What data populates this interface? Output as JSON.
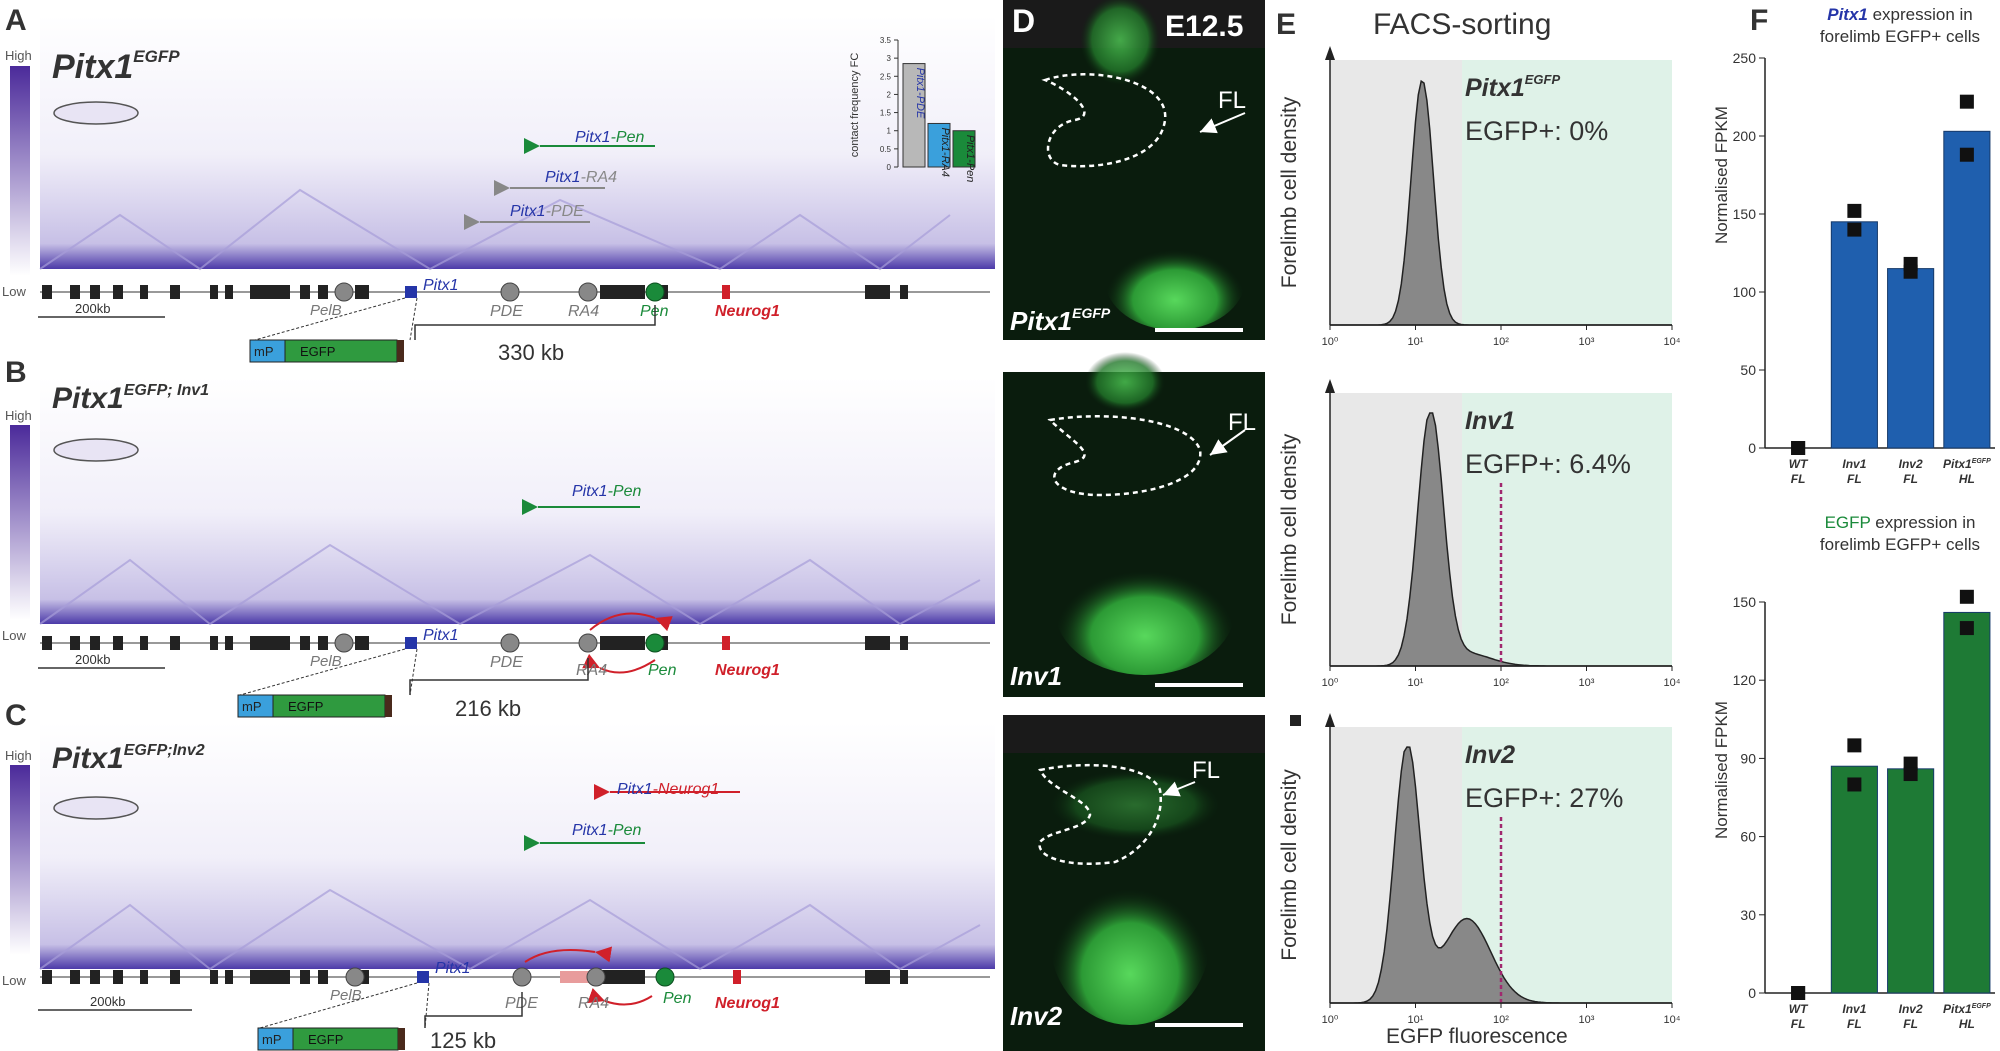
{
  "panels": {
    "A": {
      "letter": "A",
      "title_main": "Pitx1",
      "title_sup": "EGFP",
      "scale_high": "High",
      "scale_low": "Low",
      "arrows": [
        {
          "gene": "Pitx1",
          "target": "-Pen",
          "color": "#1a8a3a"
        },
        {
          "gene": "Pitx1",
          "target": "-RA4",
          "color": "#888888"
        },
        {
          "gene": "Pitx1",
          "target": "-PDE",
          "color": "#888888"
        }
      ],
      "scalebar": "200kb",
      "distance": "330 kb"
    },
    "B": {
      "letter": "B",
      "title_main": "Pitx1",
      "title_sup": "EGFP; Inv1",
      "scale_high": "High",
      "scale_low": "Low",
      "arrows": [
        {
          "gene": "Pitx1",
          "target": "-Pen",
          "color": "#1a8a3a"
        }
      ],
      "scalebar": "200kb",
      "distance": "216 kb"
    },
    "C": {
      "letter": "C",
      "title_main": "Pitx1",
      "title_sup": "EGFP;Inv2",
      "scale_high": "High",
      "scale_low": "Low",
      "arrows": [
        {
          "gene": "Pitx1",
          "target": "-Neurog1",
          "color": "#d0202a"
        },
        {
          "gene": "Pitx1",
          "target": "-Pen",
          "color": "#1a8a3a"
        }
      ],
      "scalebar": "200kb",
      "distance": "125 kb"
    },
    "D": {
      "letter": "D",
      "stage": "E12.5",
      "fl_label": "FL",
      "images": [
        {
          "label_main": "Pitx1",
          "label_sup": "EGFP"
        },
        {
          "label_main": "Inv1",
          "label_sup": ""
        },
        {
          "label_main": "Inv2",
          "label_sup": ""
        }
      ]
    },
    "E": {
      "letter": "E",
      "title": "FACS-sorting",
      "ylabel": "Forelimb cell density",
      "xlabel": "EGFP fluorescence",
      "ticks": [
        "10⁰",
        "10¹",
        "10²",
        "10³",
        "10⁴"
      ],
      "plots": [
        {
          "name": "Pitx1",
          "sup": "EGFP",
          "stat": "EGFP+: 0%"
        },
        {
          "name": "Inv1",
          "sup": "",
          "stat": "EGFP+: 6.4%"
        },
        {
          "name": "Inv2",
          "sup": "",
          "stat": "EGFP+: 27%"
        }
      ]
    },
    "F": {
      "letter": "F",
      "top_title_gene": "Pitx1",
      "top_title_rest": " expression in",
      "top_title_line2": "forelimb EGFP+ cells",
      "bottom_title_gene": "EGFP",
      "bottom_title_rest": " expression in",
      "bottom_title_line2": "forelimb EGFP+ cells",
      "ylabel": "Normalised FPKM"
    }
  },
  "genome": {
    "labels": [
      "PelB",
      "Pitx1",
      "PDE",
      "RA4",
      "Pen",
      "Neurog1"
    ],
    "construct_mp": "mP",
    "construct_egfp": "EGFP"
  },
  "inset": {
    "ylabel": "contact frequency FC",
    "ticks": [
      "0",
      "0.5",
      "1",
      "1.5",
      "2",
      "2.5",
      "3",
      "3.5"
    ],
    "bars": [
      {
        "label": "Pitx1-PDE",
        "value": 2.85,
        "color": "#b8b8b8"
      },
      {
        "label": "Pitx1-RA4",
        "value": 1.2,
        "color": "#3aa0dc"
      },
      {
        "label": "Pitx1-Pen",
        "value": 1.0,
        "color": "#1a8a3a"
      }
    ]
  },
  "chart_data": [
    {
      "type": "bar",
      "title": "Pitx1 expression in forelimb EGFP+ cells",
      "ylabel": "Normalised FPKM",
      "categories": [
        "WT FL",
        "Inv1 FL",
        "Inv2 FL",
        "Pitx1EGFP HL"
      ],
      "cat_top": [
        "WT",
        "Inv1",
        "Inv2",
        "Pitx1"
      ],
      "cat_sup": [
        "",
        "",
        "",
        "EGFP"
      ],
      "cat_bottom": [
        "FL",
        "FL",
        "FL",
        "HL"
      ],
      "values": [
        0,
        145,
        115,
        203
      ],
      "points": [
        [
          0,
          0
        ],
        [
          152,
          140
        ],
        [
          118,
          113
        ],
        [
          222,
          188
        ]
      ],
      "ylim": [
        0,
        250
      ],
      "ticks": [
        0,
        50,
        100,
        150,
        200,
        250
      ],
      "color": "#1f5fae"
    },
    {
      "type": "bar",
      "title": "EGFP expression in forelimb EGFP+ cells",
      "ylabel": "Normalised FPKM",
      "categories": [
        "WT FL",
        "Inv1 FL",
        "Inv2 FL",
        "Pitx1EGFP HL"
      ],
      "cat_top": [
        "WT",
        "Inv1",
        "Inv2",
        "Pitx1"
      ],
      "cat_sup": [
        "",
        "",
        "",
        "EGFP"
      ],
      "cat_bottom": [
        "FL",
        "FL",
        "FL",
        "HL"
      ],
      "values": [
        0,
        87,
        86,
        146
      ],
      "points": [
        [
          0,
          0
        ],
        [
          95,
          80
        ],
        [
          88,
          84
        ],
        [
          152,
          140
        ]
      ],
      "ylim": [
        0,
        150
      ],
      "ticks": [
        0,
        30,
        60,
        90,
        120,
        150
      ],
      "color": "#1e7a35"
    }
  ]
}
